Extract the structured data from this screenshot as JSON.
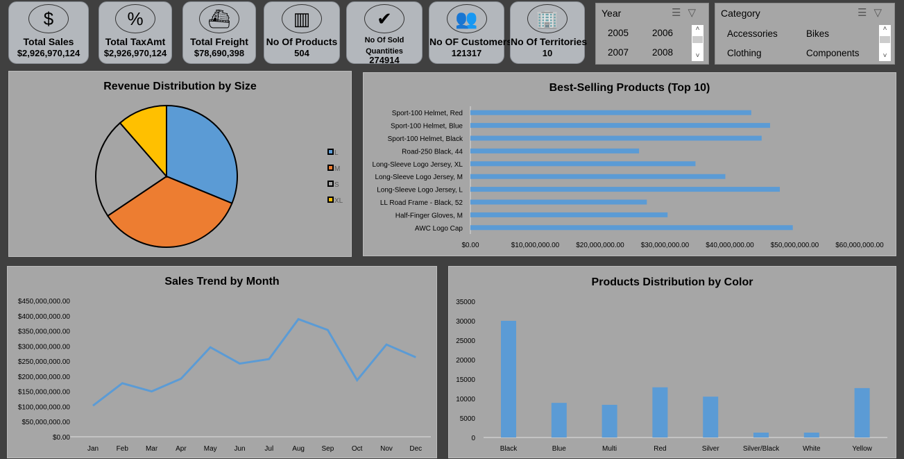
{
  "kpis": [
    {
      "icon": "dollar-icon",
      "glyph": "$",
      "label": "Total Sales",
      "value": "$2,926,970,124"
    },
    {
      "icon": "money-bag-percent-icon",
      "glyph": "%",
      "label": "Total TaxAmt",
      "value": "$2,926,970,124"
    },
    {
      "icon": "cargo-ship-icon",
      "glyph": "⛴",
      "label": "Total Freight",
      "value": "$78,690,398"
    },
    {
      "icon": "barcode-icon",
      "glyph": "▥",
      "label": "No Of Products",
      "value": "504"
    },
    {
      "icon": "inbox-check-icon",
      "glyph": "✔",
      "label": "No Of Sold Quantities",
      "value": "274914"
    },
    {
      "icon": "customers-icon",
      "glyph": "👥",
      "label": "No OF Customers",
      "value": "121317"
    },
    {
      "icon": "buildings-icon",
      "glyph": "🏢",
      "label": "No Of Territories",
      "value": "10"
    }
  ],
  "year_slicer": {
    "title": "Year",
    "items": [
      "2005",
      "2006",
      "2007",
      "2008"
    ]
  },
  "category_slicer": {
    "title": "Category",
    "items": [
      "Accessories",
      "Bikes",
      "Clothing",
      "Components"
    ]
  },
  "colors": {
    "blue": "#5b9bd5",
    "orange": "#ed7d31",
    "gray": "#a5a5a5",
    "yellow": "#ffc000",
    "panel": "#a6a6a6"
  },
  "chart_data": [
    {
      "type": "pie",
      "title": "Revenue Distribution by Size",
      "categories": [
        "L",
        "M",
        "S",
        "XL"
      ],
      "values": [
        31.2,
        34.4,
        23.0,
        11.4
      ],
      "slice_colors": [
        "#5b9bd5",
        "#ed7d31",
        "#a5a5a5",
        "#ffc000"
      ],
      "legend": "right"
    },
    {
      "type": "bar",
      "orientation": "horizontal",
      "title": "Best-Selling Products (Top 10)",
      "categories": [
        "Sport-100 Helmet, Red",
        "Sport-100 Helmet, Blue",
        "Sport-100 Helmet, Black",
        "Road-250 Black, 44",
        "Long-Sleeve Logo Jersey, XL",
        "Long-Sleeve Logo Jersey, M",
        "Long-Sleeve Logo Jersey, L",
        "LL Road Frame - Black, 52",
        "Half-Finger Gloves, M",
        "AWC Logo Cap"
      ],
      "values": [
        43300000,
        46200000,
        44900000,
        26000000,
        34700000,
        39300000,
        47700000,
        27200000,
        30400000,
        49700000
      ],
      "xlim": [
        0,
        60000000
      ],
      "xticks": [
        "$0.00",
        "$10,000,000.00",
        "$20,000,000.00",
        "$30,000,000.00",
        "$40,000,000.00",
        "$50,000,000.00",
        "$60,000,000.00"
      ]
    },
    {
      "type": "line",
      "title": "Sales Trend by Month",
      "categories": [
        "Jan",
        "Feb",
        "Mar",
        "Apr",
        "May",
        "Jun",
        "Jul",
        "Aug",
        "Sep",
        "Oct",
        "Nov",
        "Dec"
      ],
      "values": [
        103000000,
        177000000,
        150000000,
        192000000,
        296000000,
        242000000,
        257000000,
        389000000,
        353000000,
        187000000,
        305000000,
        263000000
      ],
      "ylim": [
        0,
        450000000
      ],
      "yticks": [
        "$0.00",
        "$50,000,000.00",
        "$100,000,000.00",
        "$150,000,000.00",
        "$200,000,000.00",
        "$250,000,000.00",
        "$300,000,000.00",
        "$350,000,000.00",
        "$400,000,000.00",
        "$450,000,000.00"
      ]
    },
    {
      "type": "bar",
      "title": "Products Distribution by Color",
      "categories": [
        "Black",
        "Blue",
        "Multi",
        "Red",
        "Silver",
        "Silver/Black",
        "White",
        "Yellow"
      ],
      "values": [
        30000,
        8900,
        8400,
        12900,
        10500,
        1250,
        1250,
        12700
      ],
      "ylim": [
        0,
        35000
      ],
      "yticks": [
        "0",
        "5000",
        "10000",
        "15000",
        "20000",
        "25000",
        "30000",
        "35000"
      ]
    }
  ]
}
